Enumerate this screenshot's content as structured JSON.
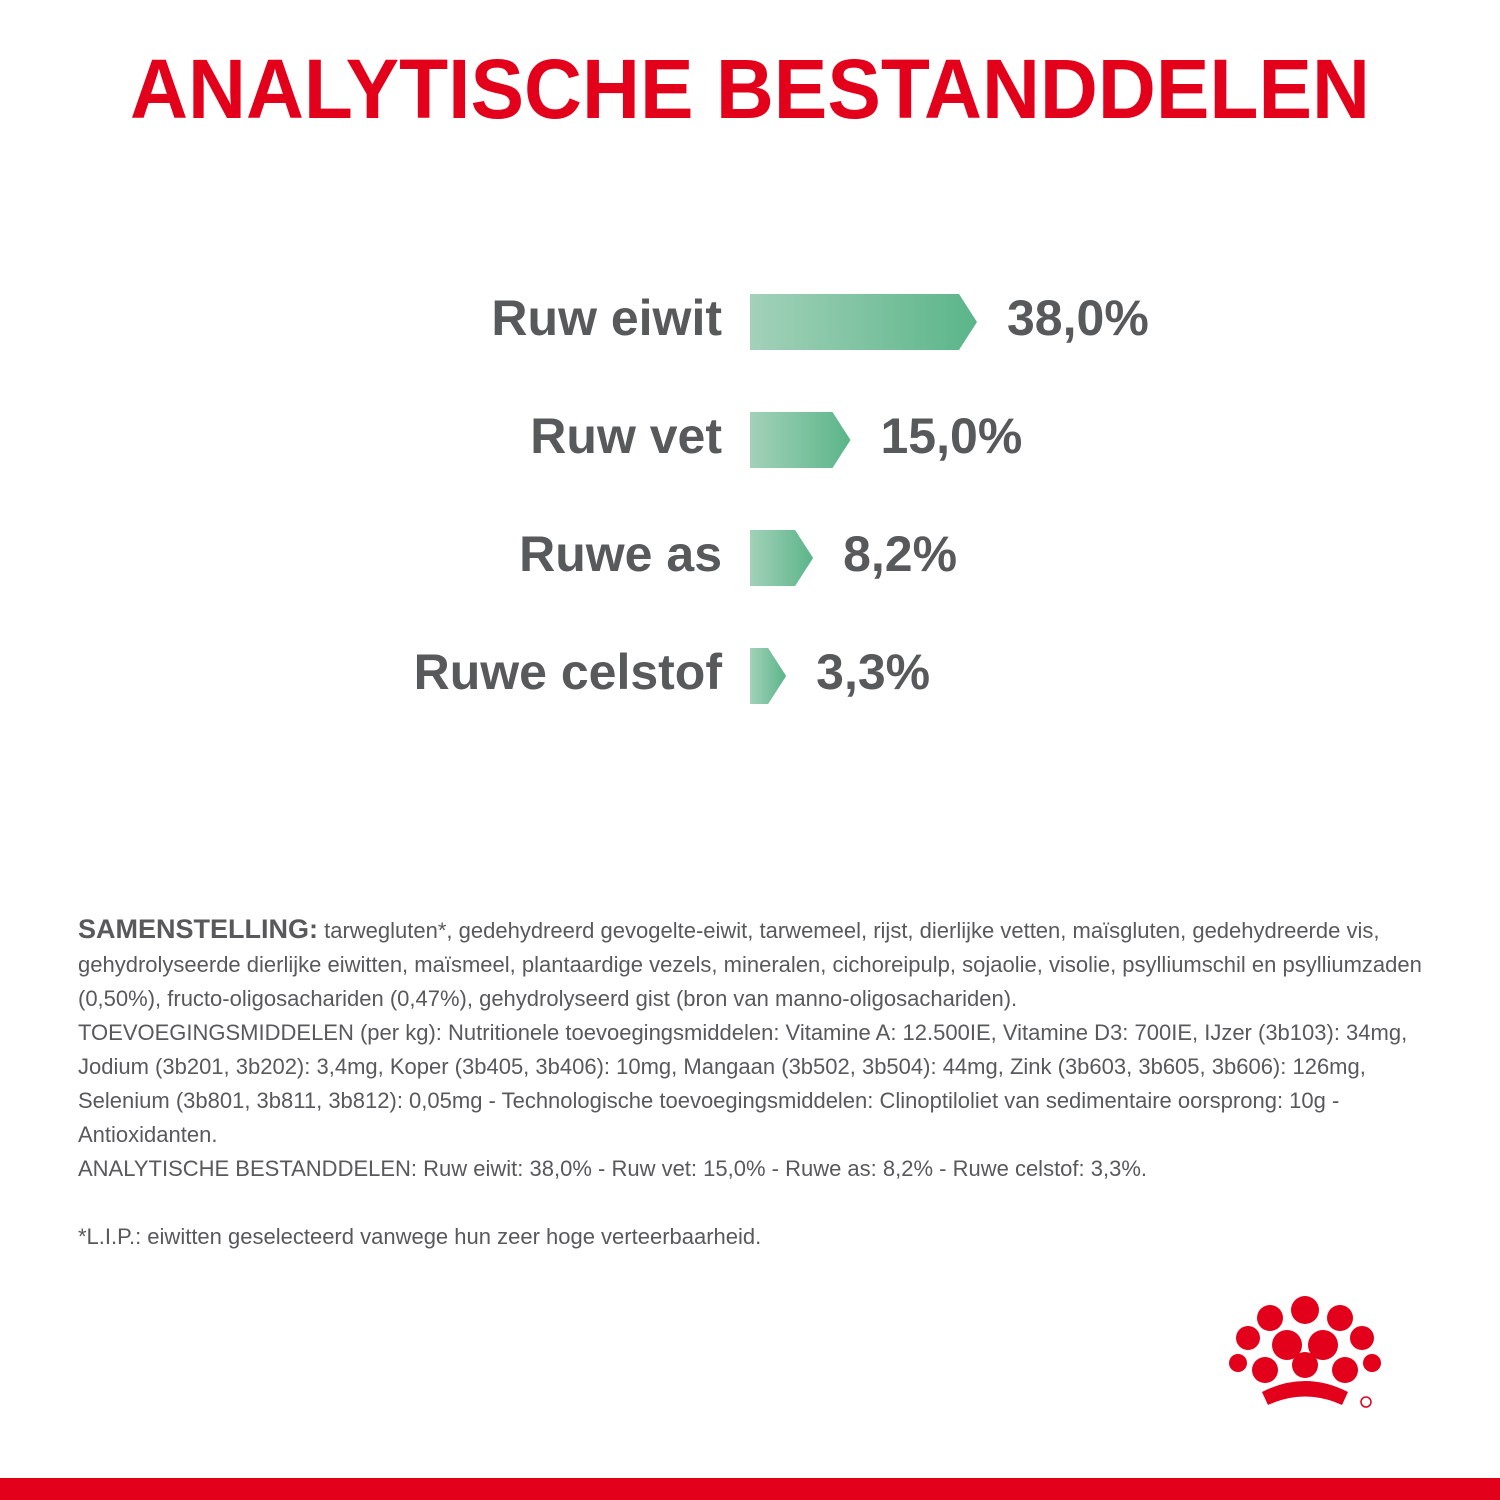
{
  "chart_data": {
    "type": "bar",
    "orientation": "horizontal",
    "title": "ANALYTISCHE BESTANDDELEN",
    "categories": [
      "Ruw eiwit",
      "Ruw vet",
      "Ruwe as",
      "Ruwe celstof"
    ],
    "values": [
      38.0,
      15.0,
      8.2,
      3.3
    ],
    "value_labels": [
      "38,0%",
      "15,0%",
      "8,2%",
      "3,3%"
    ],
    "color": [
      "#a3d1b9",
      "#5bb58a"
    ]
  },
  "composition": {
    "heading": "SAMENSTELLING:",
    "text": "tarwegluten*, gedehydreerd gevogelte-eiwit, tarwemeel, rijst, dierlijke vetten, maïsgluten, gedehydreerde vis, gehydrolyseerde dierlijke eiwitten, maïsmeel, plantaardige vezels, mineralen, cichoreipulp, sojaolie, visolie, psylliumschil en psylliumzaden (0,50%), fructo-oligosachariden (0,47%), gehydrolyseerd gist (bron van manno-oligosachariden)."
  },
  "additives": "TOEVOEGINGSMIDDELEN (per kg): Nutritionele toevoegingsmiddelen: Vitamine A: 12.500IE, Vitamine D3: 700IE, IJzer (3b103): 34mg, Jodium (3b201, 3b202): 3,4mg, Koper (3b405, 3b406): 10mg, Mangaan (3b502, 3b504): 44mg, Zink (3b603, 3b605, 3b606): 126mg, Selenium (3b801, 3b811, 3b812): 0,05mg - Technologische toevoegingsmiddelen: Clinoptiloliet van sedimentaire oorsprong: 10g - Antioxidanten.",
  "analytical": "ANALYTISCHE BESTANDDELEN: Ruw eiwit: 38,0% - Ruw vet: 15,0% - Ruwe as: 8,2% - Ruwe celstof: 3,3%.",
  "footnote": "*L.I.P.: eiwitten geselecteerd vanwege hun zeer hoge verteerbaarheid."
}
